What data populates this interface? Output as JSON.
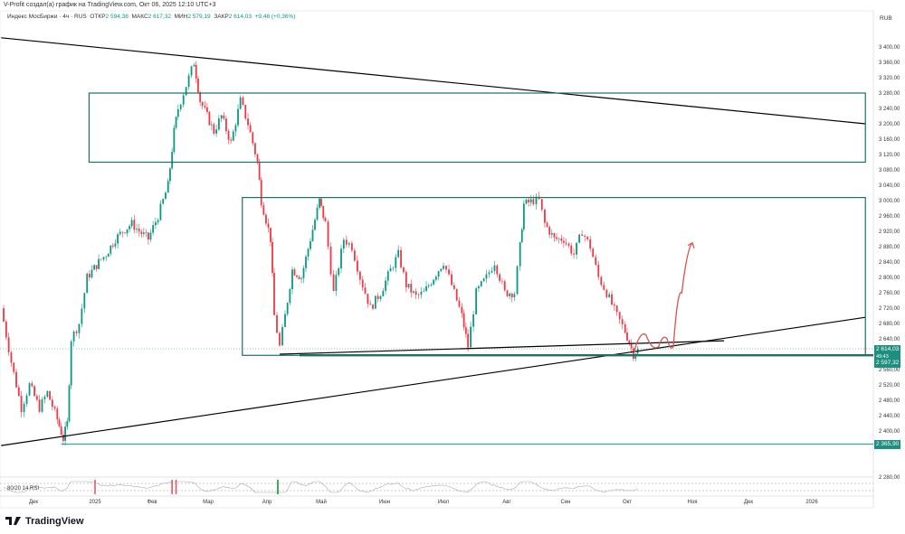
{
  "header": {
    "credit": "V-Profit создал(а) график на TradingView.com, Окт 06, 2025 12:10 UTC+3"
  },
  "legend": {
    "symbol": "Индекс МосБиржи · 4ч · RUS",
    "open_label": "ОТКР",
    "open": "2 594,38",
    "high_label": "МАКС",
    "high": "2 617,32",
    "low_label": "МИН",
    "low": "2 579,19",
    "close_label": "ЗАКР",
    "close": "2 614,03",
    "change": "+9,48 (+0,36%)"
  },
  "axis": {
    "currency": "RUB",
    "current_price": "2 614,03",
    "countdown": "49:43",
    "level_1": "2 597,32",
    "level_2": "2 365,90"
  },
  "rsi": {
    "label": "80/20 14 RSI"
  },
  "brand": {
    "name": "TradingView"
  },
  "colors": {
    "up": "#089981",
    "down": "#f23645",
    "level": "#1e6f66",
    "drawing": "#000000",
    "arrow": "#d9534f"
  },
  "chart_data": {
    "type": "candlestick",
    "ylim": [
      2250,
      3430
    ],
    "yticks": [
      3400,
      3360,
      3320,
      3280,
      3240,
      3200,
      3160,
      3120,
      3080,
      3040,
      3000,
      2960,
      2920,
      2880,
      2840,
      2800,
      2760,
      2720,
      2680,
      2640,
      2560,
      2520,
      2480,
      2440,
      2400,
      2280
    ],
    "yticklabels": [
      "3 400,00",
      "3 360,00",
      "3 320,00",
      "3 280,00",
      "3 240,00",
      "3 200,00",
      "3 160,00",
      "3 120,00",
      "3 080,00",
      "3 040,00",
      "3 000,00",
      "2 960,00",
      "2 920,00",
      "2 880,00",
      "2 840,00",
      "2 800,00",
      "2 760,00",
      "2 720,00",
      "2 680,00",
      "2 640,00",
      "2 560,00",
      "2 520,00",
      "2 480,00",
      "2 440,00",
      "2 400,00",
      "2 280,00"
    ],
    "xticks": [
      {
        "date": "2024-12-01",
        "label": "Дек"
      },
      {
        "date": "2025-01-01",
        "label": "2025"
      },
      {
        "date": "2025-02-01",
        "label": "Фев"
      },
      {
        "date": "2025-03-01",
        "label": "Мар"
      },
      {
        "date": "2025-04-01",
        "label": "Апр"
      },
      {
        "date": "2025-05-01",
        "label": "Май"
      },
      {
        "date": "2025-06-01",
        "label": "Июн"
      },
      {
        "date": "2025-07-01",
        "label": "Июл"
      },
      {
        "date": "2025-08-01",
        "label": "Авг"
      },
      {
        "date": "2025-09-01",
        "label": "Сен"
      },
      {
        "date": "2025-10-01",
        "label": "Окт"
      },
      {
        "date": "2025-11-01",
        "label": "Ноя"
      },
      {
        "date": "2025-12-01",
        "label": "Дек"
      },
      {
        "date": "2026-01-01",
        "label": "2026"
      }
    ],
    "closes": [
      [
        "2024-11-15",
        2720
      ],
      [
        "2024-11-20",
        2580
      ],
      [
        "2024-11-25",
        2460
      ],
      [
        "2024-11-29",
        2520
      ],
      [
        "2024-12-04",
        2460
      ],
      [
        "2024-12-08",
        2500
      ],
      [
        "2024-12-13",
        2430
      ],
      [
        "2024-12-16",
        2380
      ],
      [
        "2024-12-18",
        2420
      ],
      [
        "2024-12-20",
        2640
      ],
      [
        "2024-12-24",
        2680
      ],
      [
        "2024-12-28",
        2800
      ],
      [
        "2025-01-03",
        2840
      ],
      [
        "2025-01-07",
        2860
      ],
      [
        "2025-01-12",
        2900
      ],
      [
        "2025-01-16",
        2920
      ],
      [
        "2025-01-21",
        2940
      ],
      [
        "2025-01-25",
        2920
      ],
      [
        "2025-01-30",
        2900
      ],
      [
        "2025-02-04",
        2960
      ],
      [
        "2025-02-09",
        3040
      ],
      [
        "2025-02-12",
        3180
      ],
      [
        "2025-02-14",
        3240
      ],
      [
        "2025-02-18",
        3300
      ],
      [
        "2025-02-22",
        3360
      ],
      [
        "2025-02-25",
        3260
      ],
      [
        "2025-03-04",
        3180
      ],
      [
        "2025-03-08",
        3220
      ],
      [
        "2025-03-13",
        3150
      ],
      [
        "2025-03-18",
        3260
      ],
      [
        "2025-03-22",
        3200
      ],
      [
        "2025-03-27",
        3100
      ],
      [
        "2025-03-29",
        3000
      ],
      [
        "2025-04-03",
        2900
      ],
      [
        "2025-04-05",
        2700
      ],
      [
        "2025-04-08",
        2620
      ],
      [
        "2025-04-11",
        2700
      ],
      [
        "2025-04-15",
        2820
      ],
      [
        "2025-04-20",
        2800
      ],
      [
        "2025-04-25",
        2900
      ],
      [
        "2025-04-30",
        3000
      ],
      [
        "2025-05-03",
        2940
      ],
      [
        "2025-05-07",
        2760
      ],
      [
        "2025-05-12",
        2900
      ],
      [
        "2025-05-16",
        2880
      ],
      [
        "2025-05-20",
        2800
      ],
      [
        "2025-05-25",
        2720
      ],
      [
        "2025-05-30",
        2760
      ],
      [
        "2025-06-04",
        2820
      ],
      [
        "2025-06-08",
        2860
      ],
      [
        "2025-06-12",
        2780
      ],
      [
        "2025-06-17",
        2750
      ],
      [
        "2025-06-21",
        2760
      ],
      [
        "2025-06-26",
        2800
      ],
      [
        "2025-07-01",
        2840
      ],
      [
        "2025-07-05",
        2780
      ],
      [
        "2025-07-10",
        2700
      ],
      [
        "2025-07-13",
        2620
      ],
      [
        "2025-07-17",
        2760
      ],
      [
        "2025-07-22",
        2800
      ],
      [
        "2025-07-26",
        2840
      ],
      [
        "2025-07-31",
        2760
      ],
      [
        "2025-08-05",
        2760
      ],
      [
        "2025-08-08",
        2880
      ],
      [
        "2025-08-10",
        2990
      ],
      [
        "2025-08-15",
        3000
      ],
      [
        "2025-08-18",
        3000
      ],
      [
        "2025-08-21",
        2940
      ],
      [
        "2025-08-26",
        2900
      ],
      [
        "2025-08-31",
        2900
      ],
      [
        "2025-09-05",
        2860
      ],
      [
        "2025-09-09",
        2920
      ],
      [
        "2025-09-13",
        2880
      ],
      [
        "2025-09-17",
        2800
      ],
      [
        "2025-09-21",
        2760
      ],
      [
        "2025-09-26",
        2700
      ],
      [
        "2025-09-30",
        2660
      ],
      [
        "2025-10-04",
        2600
      ],
      [
        "2025-10-06",
        2614.03
      ]
    ],
    "drawings": {
      "trendlines": [
        {
          "from": [
            "2024-11-15",
            3424
          ],
          "to": [
            "2026-01-28",
            3200
          ]
        },
        {
          "from": [
            "2024-11-15",
            2362
          ],
          "to": [
            "2026-01-28",
            2696
          ]
        },
        {
          "from": [
            "2025-04-08",
            2600
          ],
          "to": [
            "2025-11-18",
            2635
          ]
        }
      ],
      "rectangles": [
        {
          "from": [
            "2024-12-29",
            3280
          ],
          "to": [
            "2026-01-28",
            3100
          ]
        },
        {
          "from": [
            "2025-03-19",
            3008
          ],
          "to": [
            "2026-01-28",
            2597
          ]
        }
      ],
      "hlines": [
        {
          "from": "2025-04-19",
          "price": 2597.32
        },
        {
          "from": "2024-12-15",
          "price": 2365.9
        }
      ],
      "projection_arrow": [
        [
          "2025-10-04",
          2600
        ],
        [
          "2025-10-10",
          2650
        ],
        [
          "2025-10-16",
          2620
        ],
        [
          "2025-10-20",
          2640
        ],
        [
          "2025-10-23",
          2620
        ],
        [
          "2025-10-27",
          2760
        ],
        [
          "2025-11-01",
          2890
        ]
      ]
    },
    "rsi_signals": [
      {
        "date": "2025-01-01",
        "type": "overbought"
      },
      {
        "date": "2025-02-11",
        "type": "overbought"
      },
      {
        "date": "2025-02-13",
        "type": "overbought"
      },
      {
        "date": "2025-04-07",
        "type": "oversold"
      }
    ]
  }
}
